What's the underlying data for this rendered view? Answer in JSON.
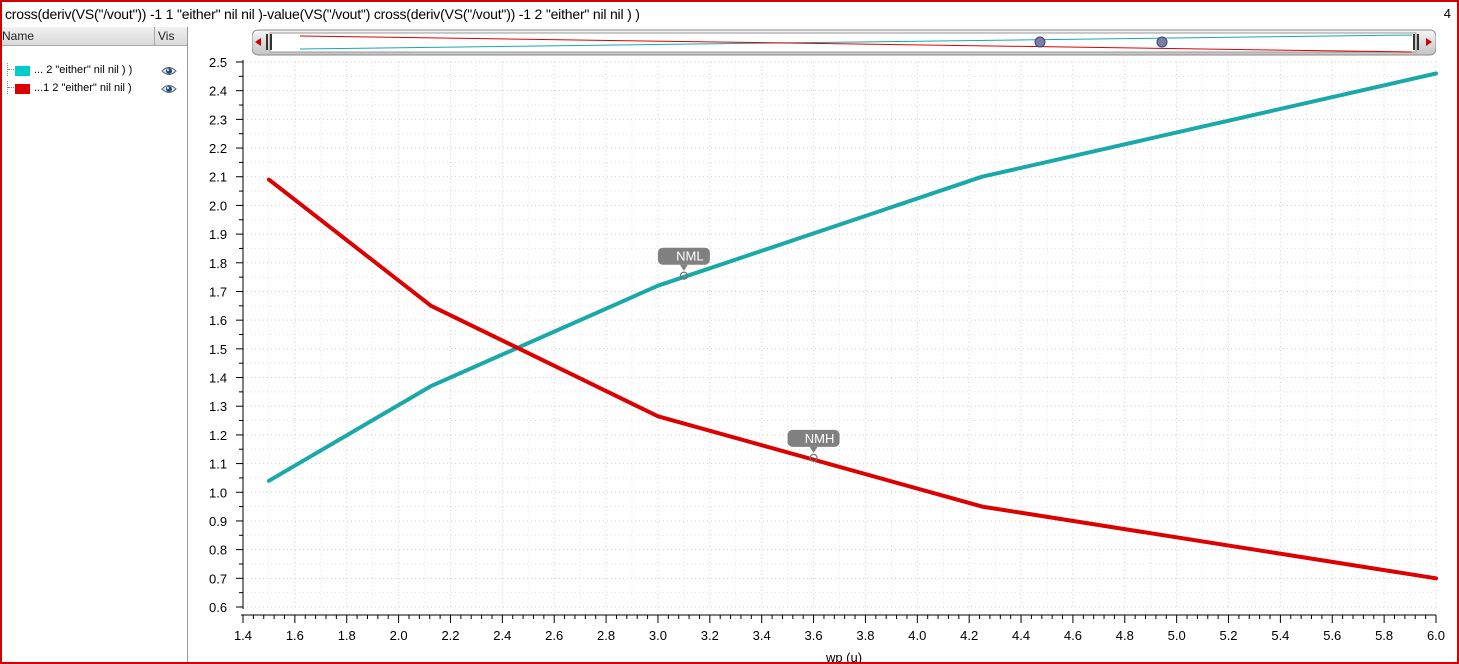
{
  "window": {
    "title": "cross(deriv(VS(\"/vout\")) -1 1 \"either\" nil nil )-value(VS(\"/vout\") cross(deriv(VS(\"/vout\")) -1 2 \"either\" nil nil ) )",
    "plot_number": "4"
  },
  "legend": {
    "header_name": "Name",
    "header_vis": "Vis",
    "items": [
      {
        "label": "... 2 \"either\" nil nil ) )",
        "color": "#00cccc",
        "visible_icon": "eye-icon"
      },
      {
        "label": "...1 2 \"either\" nil nil )",
        "color": "#dd0000",
        "visible_icon": "eye-icon"
      }
    ]
  },
  "colors": {
    "frame": "#d40000",
    "cyan_trace": "#1aa8a8",
    "red_trace": "#dd0000",
    "grid": "#cfcfcf",
    "marker_bg": "#808080"
  },
  "chart_data": {
    "type": "line",
    "xlabel": "wp (u)",
    "ylabel": "",
    "xlim": [
      1.4,
      6.0
    ],
    "ylim": [
      0.6,
      2.5
    ],
    "x_ticks": [
      "1.4",
      "1.6",
      "1.8",
      "2.0",
      "2.2",
      "2.4",
      "2.6",
      "2.8",
      "3.0",
      "3.2",
      "3.4",
      "3.6",
      "3.8",
      "4.0",
      "4.2",
      "4.4",
      "4.6",
      "4.8",
      "5.0",
      "5.2",
      "5.4",
      "5.6",
      "5.8",
      "6.0"
    ],
    "y_ticks": [
      "0.6",
      "0.7",
      "0.8",
      "0.9",
      "1.0",
      "1.1",
      "1.2",
      "1.3",
      "1.4",
      "1.5",
      "1.6",
      "1.7",
      "1.8",
      "1.9",
      "2.0",
      "2.1",
      "2.2",
      "2.3",
      "2.4",
      "2.5"
    ],
    "grid": true,
    "series": [
      {
        "color": "#1aa8a8",
        "x": [
          1.5,
          2.125,
          3.0,
          4.25,
          6.0
        ],
        "y": [
          1.04,
          1.37,
          1.72,
          2.1,
          2.46
        ]
      },
      {
        "color": "#dd0000",
        "x": [
          1.5,
          2.125,
          3.0,
          4.25,
          6.0
        ],
        "y": [
          2.09,
          1.65,
          1.265,
          0.95,
          0.7
        ]
      }
    ],
    "markers": [
      {
        "label": "NML",
        "x": 3.1,
        "y": 1.755
      },
      {
        "label": "NMH",
        "x": 3.6,
        "y": 1.12
      }
    ]
  }
}
